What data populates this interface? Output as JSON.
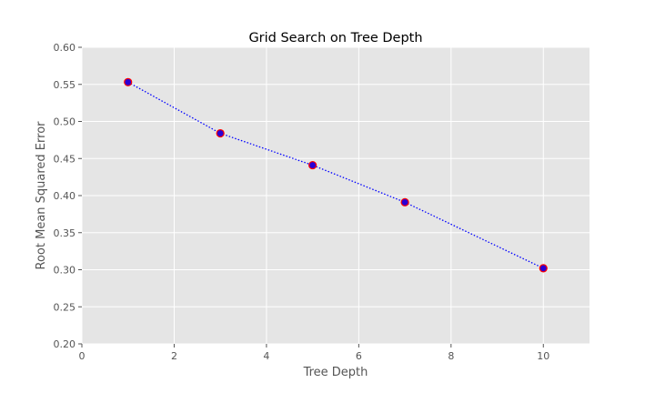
{
  "chart_data": {
    "type": "line",
    "title": "Grid Search on Tree Depth",
    "xlabel": "Tree Depth",
    "ylabel": "Root Mean Squared Error",
    "xlim": [
      0,
      11
    ],
    "ylim": [
      0.2,
      0.6
    ],
    "xticks": [
      "0",
      "2",
      "4",
      "6",
      "8",
      "10"
    ],
    "yticks": [
      "0.20",
      "0.25",
      "0.30",
      "0.35",
      "0.40",
      "0.45",
      "0.50",
      "0.55",
      "0.60"
    ],
    "grid": true,
    "series": [
      {
        "x": [
          1,
          3,
          5,
          7,
          10
        ],
        "y": [
          0.553,
          0.484,
          0.441,
          0.391,
          0.302
        ]
      }
    ],
    "colors": {
      "line": "#0000ff",
      "marker_face": "#2a00d5",
      "marker_edge": "#ff0000",
      "plot_bg": "#e5e5e5",
      "grid": "#ffffff"
    }
  }
}
